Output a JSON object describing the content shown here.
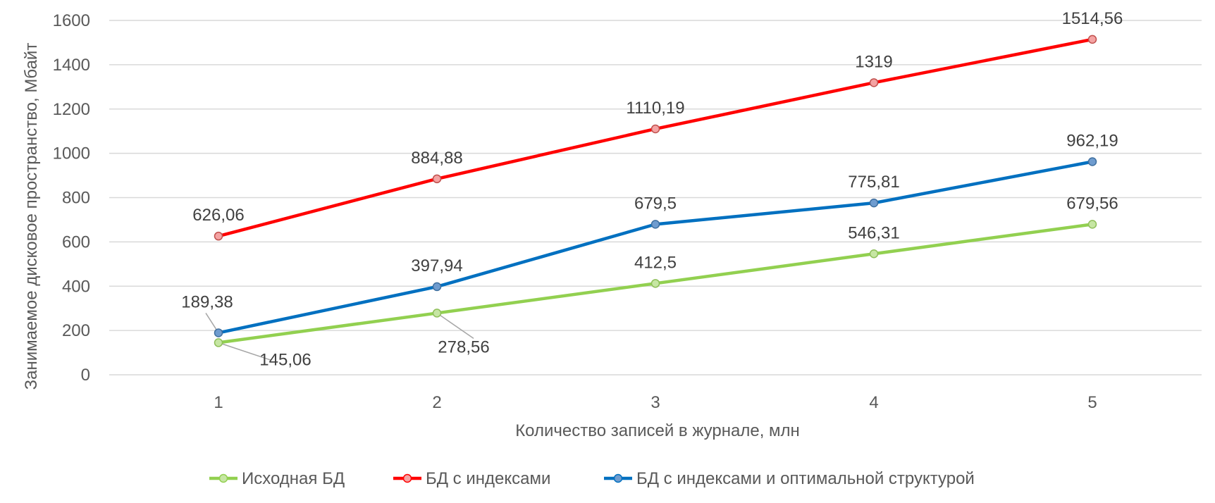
{
  "chart_data": {
    "type": "line",
    "xlabel": "Количество записей в журнале, млн",
    "ylabel": "Занимаемое дисковое пространство, Мбайт",
    "x": [
      1,
      2,
      3,
      4,
      5
    ],
    "ylim": [
      0,
      1600
    ],
    "yticks": [
      0,
      200,
      400,
      600,
      800,
      1000,
      1200,
      1400,
      1600
    ],
    "grid": "horizontal",
    "legend": "bottom",
    "series": [
      {
        "name": "Исходная БД",
        "color": "#92d050",
        "values": [
          145.06,
          278.56,
          412.5,
          546.31,
          679.56
        ],
        "labels": [
          "145,06",
          "278,56",
          "412,5",
          "546,31",
          "679,56"
        ]
      },
      {
        "name": "БД с индексами",
        "color": "#ff0000",
        "values": [
          626.06,
          884.88,
          1110.19,
          1319,
          1514.56
        ],
        "labels": [
          "626,06",
          "884,88",
          "1110,19",
          "1319",
          "1514,56"
        ]
      },
      {
        "name": "БД с индексами и оптимальной структурой",
        "color": "#0070c0",
        "values": [
          189.38,
          397.94,
          679.5,
          775.81,
          962.19
        ],
        "labels": [
          "189,38",
          "397,94",
          "679,5",
          "775,81",
          "962,19"
        ]
      }
    ]
  }
}
